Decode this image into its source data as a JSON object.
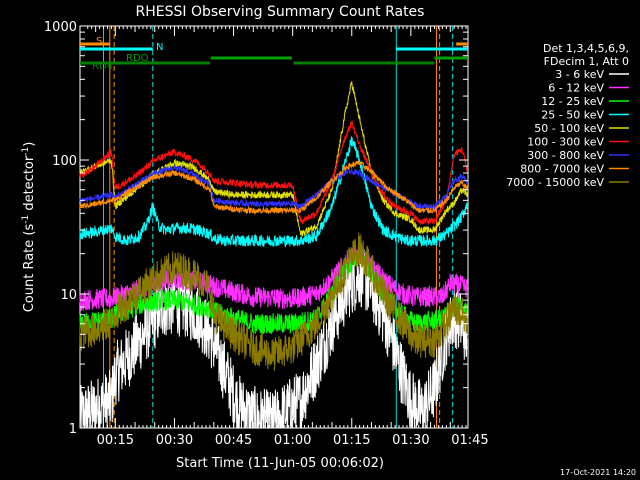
{
  "chart_data": {
    "type": "line",
    "title": "RHESSI Observing Summary Count Rates",
    "xlabel": "Start Time (11-Jun-05 00:06:02)",
    "ylabel_main": "Count Rate (s",
    "ylabel_sup1": "-1",
    "ylabel_mid": " detector",
    "ylabel_sup2": "-1",
    "ylabel_end": ")",
    "y_scale": "log",
    "ylim": [
      1,
      1000
    ],
    "xlim_minutes": [
      6.03,
      104.5
    ],
    "x_ticks": [
      {
        "label": "00:15",
        "min": 15
      },
      {
        "label": "00:30",
        "min": 30
      },
      {
        "label": "00:45",
        "min": 45
      },
      {
        "label": "01:00",
        "min": 60
      },
      {
        "label": "01:15",
        "min": 75
      },
      {
        "label": "01:30",
        "min": 90
      },
      {
        "label": "01:45",
        "min": 105
      }
    ],
    "y_ticks": [
      {
        "label": "1",
        "v": 1
      },
      {
        "label": "10",
        "v": 10
      },
      {
        "label": "100",
        "v": 100
      },
      {
        "label": "1000",
        "v": 1000
      }
    ],
    "legend_header": [
      "Det 1,3,4,5,6,9,",
      "FDecim 1, Att 0"
    ],
    "series": [
      {
        "name": "3 - 6 keV",
        "color": "#ffffff",
        "x": [
          6,
          10,
          14,
          15,
          20,
          24,
          27,
          30,
          33,
          36,
          39,
          42,
          46,
          50,
          55,
          58,
          62,
          66,
          70,
          74,
          77,
          80,
          84,
          87,
          90,
          93,
          96,
          99,
          101,
          103,
          104.5
        ],
        "y": [
          1.2,
          1.4,
          1.6,
          2.5,
          4,
          6,
          8,
          8.5,
          8,
          7,
          5,
          3,
          1.5,
          1.2,
          1.1,
          1.3,
          1.6,
          3,
          6,
          11,
          14,
          11,
          6,
          3,
          1.6,
          1.3,
          2,
          5,
          7,
          6,
          4.5
        ]
      },
      {
        "name": "6 - 12 keV",
        "color": "#ff30ff",
        "x": [
          6,
          14,
          15,
          22,
          27,
          30,
          34,
          38,
          42,
          50,
          60,
          66,
          70,
          74,
          77,
          80,
          84,
          88,
          91,
          98,
          100,
          103,
          104.5
        ],
        "y": [
          9,
          9.3,
          9.5,
          11,
          12.5,
          13,
          12.5,
          12,
          11,
          9.5,
          9.2,
          10,
          13,
          18,
          20,
          16,
          12,
          10,
          9.5,
          9.5,
          12,
          11.5,
          11
        ]
      },
      {
        "name": "12 - 25 keV",
        "color": "#00ff00",
        "x": [
          6,
          14,
          15,
          22,
          27,
          30,
          34,
          38,
          42,
          50,
          60,
          66,
          70,
          74,
          77,
          80,
          84,
          88,
          91,
          98,
          100,
          103,
          104.5
        ],
        "y": [
          6,
          6.5,
          7,
          8.5,
          9,
          9,
          8.5,
          8,
          7,
          6,
          6,
          6.5,
          10,
          16,
          20,
          14,
          9,
          7,
          6,
          6.5,
          8,
          8,
          7
        ]
      },
      {
        "name": "25 - 50 keV",
        "color": "#00ffff",
        "x": [
          6,
          10,
          14,
          15,
          18,
          21,
          23,
          24.5,
          26,
          28,
          30,
          33,
          36,
          39,
          40,
          43,
          46,
          50,
          55,
          60,
          62,
          66,
          70,
          73,
          75,
          77,
          80,
          83,
          86,
          89,
          92,
          96,
          99,
          101,
          103,
          104.5
        ],
        "y": [
          28,
          29,
          31,
          27,
          25,
          27,
          33,
          45,
          32,
          30,
          31,
          31,
          30,
          28,
          26,
          25,
          25,
          25,
          25,
          25,
          25,
          27,
          45,
          90,
          140,
          100,
          45,
          30,
          27,
          25,
          25,
          25,
          28,
          32,
          38,
          48
        ]
      },
      {
        "name": "50 - 100 keV",
        "color": "#e0e000",
        "x": [
          6,
          10,
          14,
          15,
          20,
          25,
          30,
          35,
          39,
          40,
          45,
          50,
          55,
          60,
          62,
          66,
          70,
          73,
          75,
          77,
          80,
          83,
          86,
          90,
          92,
          96,
          99,
          101,
          103,
          104.5
        ],
        "y": [
          80,
          90,
          100,
          45,
          60,
          80,
          95,
          88,
          70,
          58,
          55,
          55,
          55,
          55,
          28,
          32,
          60,
          200,
          380,
          200,
          80,
          50,
          40,
          36,
          30,
          30,
          42,
          48,
          60,
          55
        ]
      },
      {
        "name": "100 - 300 keV",
        "color": "#ff1010",
        "x": [
          6,
          10,
          14,
          15,
          20,
          25,
          30,
          35,
          39,
          40,
          45,
          50,
          55,
          60,
          62,
          66,
          70,
          73,
          75,
          77,
          80,
          83,
          86,
          90,
          92,
          96,
          99,
          101,
          103,
          104.5
        ],
        "y": [
          75,
          90,
          115,
          62,
          75,
          100,
          115,
          100,
          80,
          70,
          68,
          65,
          65,
          65,
          35,
          40,
          70,
          140,
          190,
          130,
          80,
          55,
          45,
          40,
          35,
          35,
          50,
          110,
          120,
          80
        ]
      },
      {
        "name": "300 - 800 keV",
        "color": "#3030ff",
        "x": [
          6,
          10,
          14,
          15,
          20,
          25,
          30,
          35,
          39,
          40,
          45,
          50,
          55,
          60,
          62,
          66,
          70,
          74,
          77,
          80,
          84,
          88,
          92,
          96,
          99,
          101,
          103,
          104.5
        ],
        "y": [
          50,
          52,
          55,
          52,
          65,
          80,
          88,
          78,
          65,
          50,
          48,
          47,
          47,
          47,
          45,
          55,
          70,
          82,
          80,
          70,
          60,
          52,
          45,
          45,
          55,
          70,
          75,
          68
        ]
      },
      {
        "name": "800 - 7000 keV",
        "color": "#ff8c00",
        "x": [
          6,
          10,
          14,
          15,
          20,
          25,
          30,
          35,
          39,
          40,
          45,
          50,
          55,
          60,
          62,
          66,
          70,
          74,
          77,
          80,
          84,
          88,
          92,
          96,
          99,
          101,
          103,
          104.5
        ],
        "y": [
          45,
          47,
          50,
          50,
          62,
          75,
          80,
          72,
          60,
          45,
          43,
          42,
          42,
          42,
          42,
          52,
          70,
          90,
          95,
          82,
          62,
          52,
          42,
          42,
          50,
          62,
          68,
          60
        ]
      },
      {
        "name": "7000 - 15000 keV",
        "color": "#8b7a00",
        "x": [
          6,
          10,
          14,
          15,
          20,
          25,
          30,
          35,
          39,
          40,
          45,
          50,
          55,
          60,
          62,
          66,
          70,
          74,
          77,
          80,
          84,
          88,
          91,
          96,
          99,
          101,
          103,
          104.5
        ],
        "y": [
          5,
          5.5,
          6,
          7,
          10,
          13,
          16,
          14,
          11,
          7,
          5,
          4,
          3.5,
          4,
          4.5,
          6,
          10,
          17,
          22,
          15,
          9,
          6,
          4.5,
          4.5,
          6,
          8,
          7,
          6
        ]
      }
    ],
    "vertical_lines": [
      {
        "min": 12.0,
        "color": "#00e0e0",
        "dash": false
      },
      {
        "min": 13.6,
        "color": "#ff8c00",
        "dash": false
      },
      {
        "min": 14.7,
        "color": "#ff8c00",
        "dash": true
      },
      {
        "min": 24.5,
        "color": "#00e0e0",
        "dash": true
      },
      {
        "min": 86.3,
        "color": "#00e0e0",
        "dash": false
      },
      {
        "min": 96.5,
        "color": "#ff8c00",
        "dash": false
      },
      {
        "min": 97.3,
        "color": "#ff8c00",
        "dash": true
      },
      {
        "min": 100.6,
        "color": "#00e0e0",
        "dash": true
      }
    ],
    "state_bars": [
      {
        "label": "S",
        "color": "#ff8c00",
        "segments": [
          [
            6.03,
            13.6
          ],
          [
            101.5,
            104.5
          ]
        ]
      },
      {
        "label": "N",
        "color": "#00ffff",
        "segments": [
          [
            6.03,
            24.5
          ],
          [
            86.3,
            104.5
          ]
        ]
      },
      {
        "label": "RDO",
        "color": "#00a000",
        "segments": [
          [
            39.2,
            59.8
          ],
          [
            96.0,
            104.5
          ]
        ]
      },
      {
        "label": "RD4",
        "color": "#008000",
        "segments": [
          [
            6.03,
            39.0
          ],
          [
            60.2,
            96.0
          ]
        ]
      }
    ],
    "timestamp": "17-Oct-2021 14:20"
  }
}
